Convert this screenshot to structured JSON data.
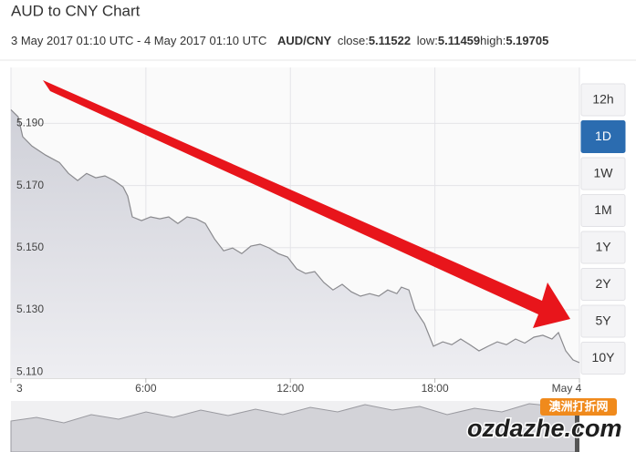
{
  "chart_data": {
    "type": "area",
    "title": "AUD to CNY Chart",
    "subtitle": {
      "range": "3 May 2017 01:10 UTC - 4 May 2017 01:10 UTC",
      "pair": "AUD/CNY",
      "close_label": "close:",
      "close": 5.11522,
      "low_label": "low:",
      "low": 5.11459,
      "high_label": "high:",
      "high": 5.19705
    },
    "x": [
      0.4,
      0.7,
      0.89,
      1.27,
      1.84,
      2.41,
      2.79,
      3.17,
      3.54,
      3.92,
      4.3,
      4.68,
      5.06,
      5.25,
      5.44,
      5.82,
      6.2,
      6.58,
      6.95,
      7.33,
      7.71,
      8.09,
      8.47,
      8.85,
      9.23,
      9.6,
      9.98,
      10.36,
      10.74,
      11.12,
      11.5,
      11.88,
      12.26,
      12.63,
      13.01,
      13.39,
      13.77,
      14.15,
      14.53,
      14.91,
      15.29,
      15.67,
      16.04,
      16.42,
      16.61,
      16.92,
      17.18,
      17.56,
      17.94,
      18.33,
      18.7,
      19.07,
      19.45,
      19.83,
      20.21,
      20.59,
      20.97,
      21.35,
      21.73,
      22.11,
      22.48,
      22.86,
      23.13,
      23.43,
      23.73,
      24
    ],
    "series": [
      {
        "color": "#8a8a8e",
        "values": [
          5.1944,
          5.1921,
          5.1857,
          5.1827,
          5.1798,
          5.1774,
          5.1739,
          5.1716,
          5.1739,
          5.1725,
          5.1731,
          5.1716,
          5.1695,
          5.1666,
          5.1599,
          5.1587,
          5.1599,
          5.1593,
          5.1599,
          5.1578,
          5.1599,
          5.1593,
          5.1578,
          5.1528,
          5.149,
          5.1499,
          5.1481,
          5.1505,
          5.1511,
          5.1499,
          5.1481,
          5.147,
          5.1432,
          5.1417,
          5.1423,
          5.1388,
          5.1364,
          5.1382,
          5.1358,
          5.1344,
          5.1352,
          5.1344,
          5.1364,
          5.1352,
          5.1373,
          5.1364,
          5.13,
          5.1256,
          5.1183,
          5.1197,
          5.1188,
          5.1206,
          5.1188,
          5.1168,
          5.1183,
          5.1197,
          5.1188,
          5.1206,
          5.1193,
          5.1212,
          5.1218,
          5.1206,
          5.1227,
          5.1168,
          5.1139,
          5.113
        ]
      }
    ],
    "xlim": [
      0.4,
      24
    ],
    "xticks": [
      {
        "value": 0,
        "label": "3"
      },
      {
        "value": 6,
        "label": "6:00"
      },
      {
        "value": 12,
        "label": "12:00"
      },
      {
        "value": 18,
        "label": "18:00"
      },
      {
        "value": 24,
        "label": "May 4"
      }
    ],
    "ylim": [
      5.108,
      5.208
    ],
    "yticks": [
      {
        "value": 5.11,
        "label": "5.110"
      },
      {
        "value": 5.13,
        "label": "5.130"
      },
      {
        "value": 5.15,
        "label": "5.150"
      },
      {
        "value": 5.17,
        "label": "5.170"
      },
      {
        "value": 5.19,
        "label": "5.190"
      }
    ],
    "grid": true,
    "range_buttons": [
      "12h",
      "1D",
      "1W",
      "1M",
      "1Y",
      "2Y",
      "5Y",
      "10Y"
    ],
    "selected": "1D",
    "watermark": {
      "badge": "澳洲打折网",
      "site": "ozdazhe.com"
    }
  }
}
